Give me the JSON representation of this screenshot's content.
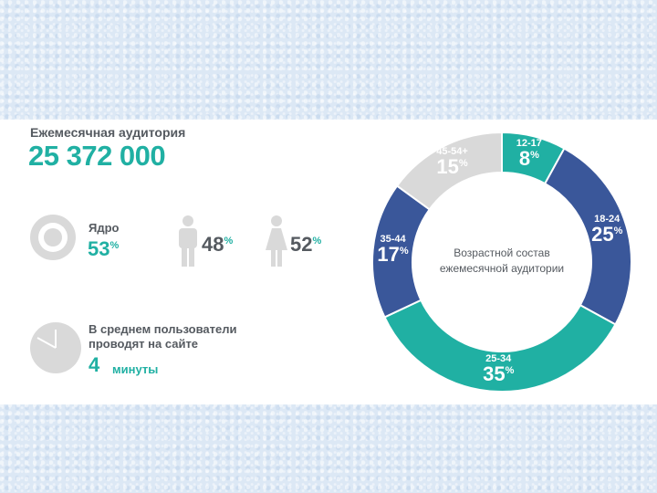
{
  "colors": {
    "teal": "#20b0a3",
    "blue": "#3a579a",
    "gray": "#d9d9d9",
    "text": "#555a60"
  },
  "audience": {
    "monthly_label": "Ежемесячная аудитория",
    "monthly_value": "25 372 000"
  },
  "core": {
    "label": "Ядро",
    "value": "53",
    "unit": "%",
    "icon": "target-icon"
  },
  "gender": {
    "male": {
      "value": "48",
      "unit": "%",
      "icon": "male-icon"
    },
    "female": {
      "value": "52",
      "unit": "%",
      "icon": "female-icon"
    }
  },
  "time": {
    "line1": "В среднем пользователи",
    "line2": "проводят на сайте",
    "value": "4",
    "unit": "минуты",
    "icon": "clock-icon"
  },
  "chart_data": {
    "type": "pie",
    "title": "Возрастной состав ежемесячной аудитории",
    "title_lines": [
      "Возрастной состав",
      "ежемесячной аудитории"
    ],
    "categories": [
      "12-17",
      "18-24",
      "25-34",
      "35-44",
      "45-54+"
    ],
    "values": [
      8,
      25,
      35,
      17,
      15
    ],
    "unit": "%",
    "colors": [
      "#20b0a3",
      "#3a579a",
      "#20b0a3",
      "#3a579a",
      "#d9d9d9"
    ],
    "donut": true
  }
}
